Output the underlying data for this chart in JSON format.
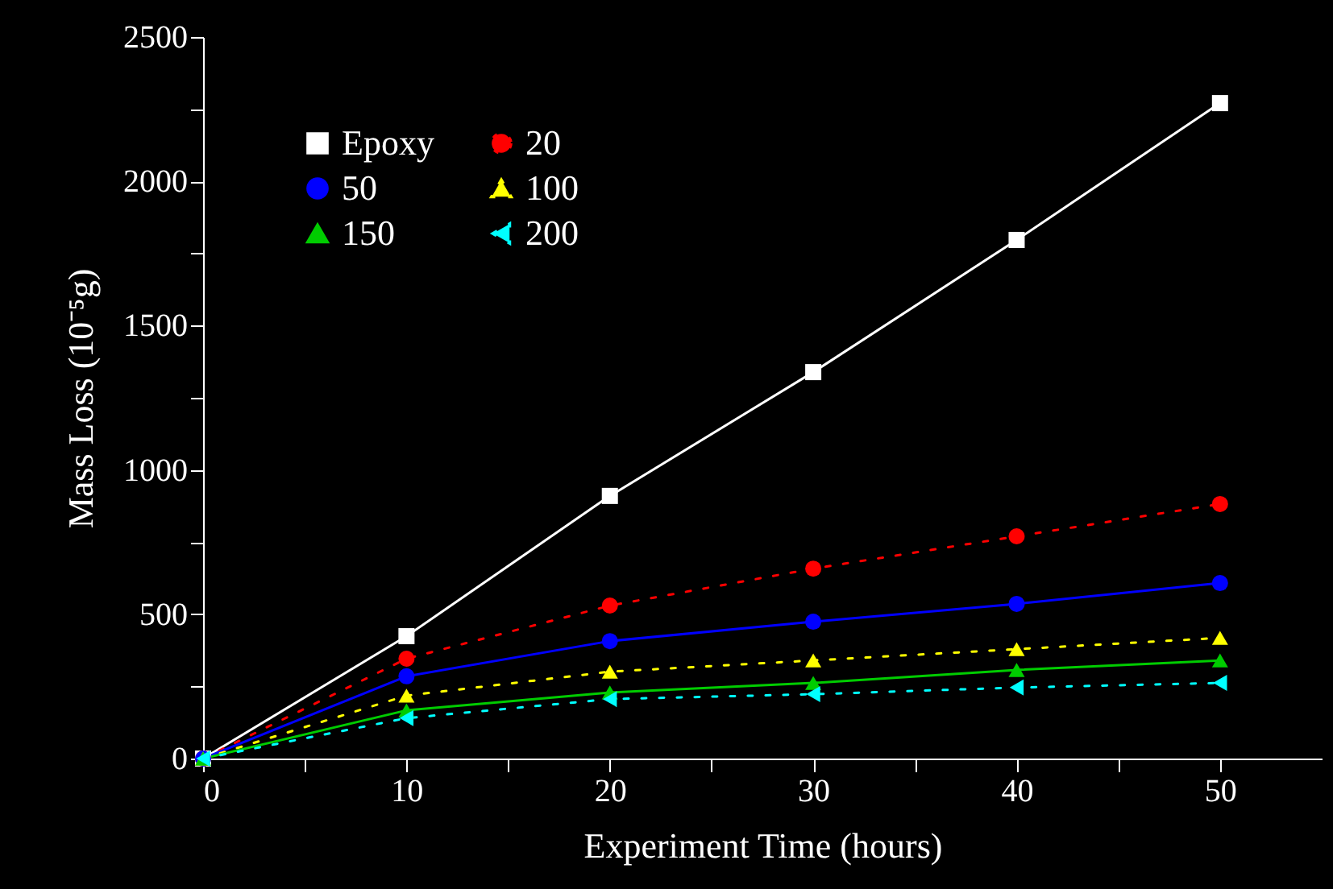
{
  "chart_data": {
    "type": "line",
    "xlabel": "Experiment Time  (hours)",
    "ylabel": "Mass Loss  (10⁻⁵g)",
    "x": [
      0,
      10,
      20,
      30,
      40,
      50
    ],
    "xlim": [
      0,
      55
    ],
    "xticks": [
      0,
      {
        "value": 5,
        "label": null
      },
      10,
      {
        "value": 15,
        "label": null
      },
      20,
      {
        "value": 25,
        "label": null
      },
      30,
      {
        "value": 35,
        "label": null
      },
      40,
      {
        "value": 45,
        "label": null
      },
      50
    ],
    "ylim": [
      0,
      2500
    ],
    "yticks": [
      0,
      {
        "value": 250,
        "label": null
      },
      500,
      {
        "value": 750,
        "label": null
      },
      1000,
      {
        "value": 1250,
        "label": null
      },
      1500,
      {
        "value": 1750,
        "label": null
      },
      2000,
      {
        "value": 2250,
        "label": null
      },
      2500
    ],
    "legend": "top left",
    "grid": false,
    "series": [
      {
        "name": "Epoxy",
        "color": "#ffffff",
        "marker": "square",
        "line_style": "solid",
        "values": [
          0,
          424,
          910,
          1339,
          1797,
          2271
        ]
      },
      {
        "name": "20",
        "color": "#ff0000",
        "marker": "circle",
        "line_style": "dotted",
        "values": [
          0,
          346,
          530,
          658,
          770,
          882
        ]
      },
      {
        "name": "50",
        "color": "#0000ff",
        "marker": "circle",
        "line_style": "solid",
        "values": [
          0,
          285,
          407,
          474,
          536,
          608
        ]
      },
      {
        "name": "100",
        "color": "#ffff00",
        "marker": "triangle",
        "line_style": "dotted",
        "values": [
          0,
          218,
          301,
          340,
          379,
          418
        ]
      },
      {
        "name": "150",
        "color": "#00cc00",
        "marker": "triangle",
        "line_style": "solid",
        "values": [
          0,
          167,
          229,
          262,
          307,
          340
        ]
      },
      {
        "name": "200",
        "color": "#00ffff",
        "marker": "triangle-left",
        "line_style": "dotted",
        "values": [
          0,
          140,
          206,
          223,
          246,
          262
        ]
      }
    ]
  }
}
